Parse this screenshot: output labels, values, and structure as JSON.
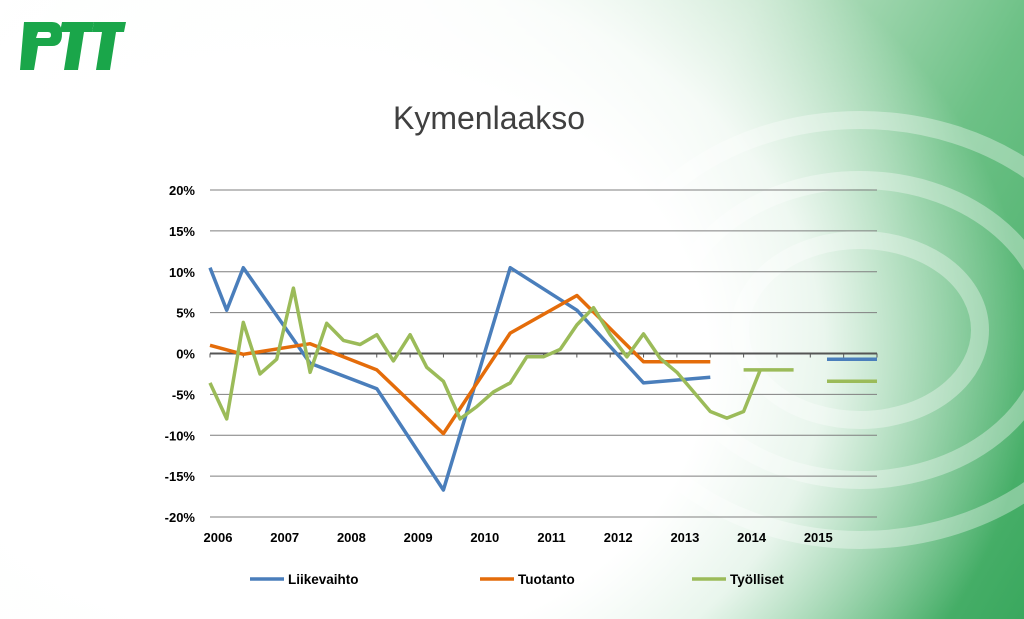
{
  "slide": {
    "logo_text": "PTT",
    "title": "Kymenlaakso"
  },
  "colors": {
    "brand_green": "#1aa64a",
    "grid": "#7f7f7f",
    "Liikevaihto": "#4a7ebb",
    "Tuotanto": "#e46c0a",
    "Työlliset": "#9bbb59"
  },
  "chart_data": {
    "type": "line",
    "title": "Kymenlaakso",
    "xlabel": "",
    "ylabel": "",
    "xlim": [
      2006,
      2016
    ],
    "ylim": [
      -20,
      20
    ],
    "y_ticks": [
      -20,
      -15,
      -10,
      -5,
      0,
      5,
      10,
      15,
      20
    ],
    "y_tick_labels": [
      "-20%",
      "-15%",
      "-10%",
      "-5%",
      "0%",
      "5%",
      "10%",
      "15%",
      "20%"
    ],
    "x_ticks": [
      2006,
      2007,
      2008,
      2009,
      2010,
      2011,
      2012,
      2013,
      2014,
      2015
    ],
    "x_tick_labels": [
      "2006",
      "2007",
      "2008",
      "2009",
      "2010",
      "2011",
      "2012",
      "2013",
      "2014",
      "2015"
    ],
    "grid": true,
    "legend_position": "bottom",
    "series": [
      {
        "name": "Liikevaihto",
        "color": "#4a7ebb",
        "segments": [
          [
            [
              2006.0,
              10.5
            ],
            [
              2006.25,
              5.3
            ],
            [
              2006.5,
              10.5
            ],
            [
              2007.5,
              -1.2
            ],
            [
              2008.5,
              -4.3
            ],
            [
              2009.5,
              -16.7
            ],
            [
              2010.5,
              10.5
            ],
            [
              2011.5,
              5.3
            ],
            [
              2012.5,
              -3.6
            ],
            [
              2013.5,
              -2.9
            ]
          ],
          [
            [
              2015.25,
              -0.7
            ],
            [
              2016.0,
              -0.7
            ]
          ]
        ]
      },
      {
        "name": "Tuotanto",
        "color": "#e46c0a",
        "segments": [
          [
            [
              2006.0,
              1.0
            ],
            [
              2006.5,
              -0.1
            ],
            [
              2007.5,
              1.2
            ],
            [
              2008.5,
              -2.0
            ],
            [
              2009.5,
              -9.8
            ],
            [
              2010.5,
              2.5
            ],
            [
              2011.5,
              7.1
            ],
            [
              2012.5,
              -1.0
            ],
            [
              2013.5,
              -1.0
            ]
          ]
        ]
      },
      {
        "name": "Työlliset",
        "color": "#9bbb59",
        "segments": [
          [
            [
              2006.0,
              -3.6
            ],
            [
              2006.25,
              -8.0
            ],
            [
              2006.5,
              3.8
            ],
            [
              2006.75,
              -2.5
            ],
            [
              2007.0,
              -0.7
            ],
            [
              2007.25,
              8.0
            ],
            [
              2007.5,
              -2.3
            ],
            [
              2007.75,
              3.7
            ],
            [
              2008.0,
              1.6
            ],
            [
              2008.25,
              1.1
            ],
            [
              2008.5,
              2.3
            ],
            [
              2008.75,
              -0.9
            ],
            [
              2009.0,
              2.3
            ],
            [
              2009.25,
              -1.7
            ],
            [
              2009.5,
              -3.4
            ],
            [
              2009.75,
              -8.0
            ],
            [
              2010.0,
              -6.5
            ],
            [
              2010.25,
              -4.7
            ],
            [
              2010.5,
              -3.6
            ],
            [
              2010.75,
              -0.4
            ],
            [
              2011.0,
              -0.4
            ],
            [
              2011.25,
              0.5
            ],
            [
              2011.5,
              3.5
            ],
            [
              2011.75,
              5.6
            ],
            [
              2012.0,
              2.3
            ],
            [
              2012.25,
              -0.4
            ],
            [
              2012.5,
              2.4
            ],
            [
              2012.75,
              -0.6
            ],
            [
              2013.0,
              -2.3
            ],
            [
              2013.25,
              -4.7
            ],
            [
              2013.5,
              -7.1
            ],
            [
              2013.75,
              -7.9
            ],
            [
              2014.0,
              -7.1
            ],
            [
              2014.25,
              -2.0
            ]
          ],
          [
            [
              2014.0,
              -2.0
            ],
            [
              2014.75,
              -2.0
            ]
          ],
          [
            [
              2015.25,
              -3.4
            ],
            [
              2016.0,
              -3.4
            ]
          ]
        ]
      }
    ]
  }
}
